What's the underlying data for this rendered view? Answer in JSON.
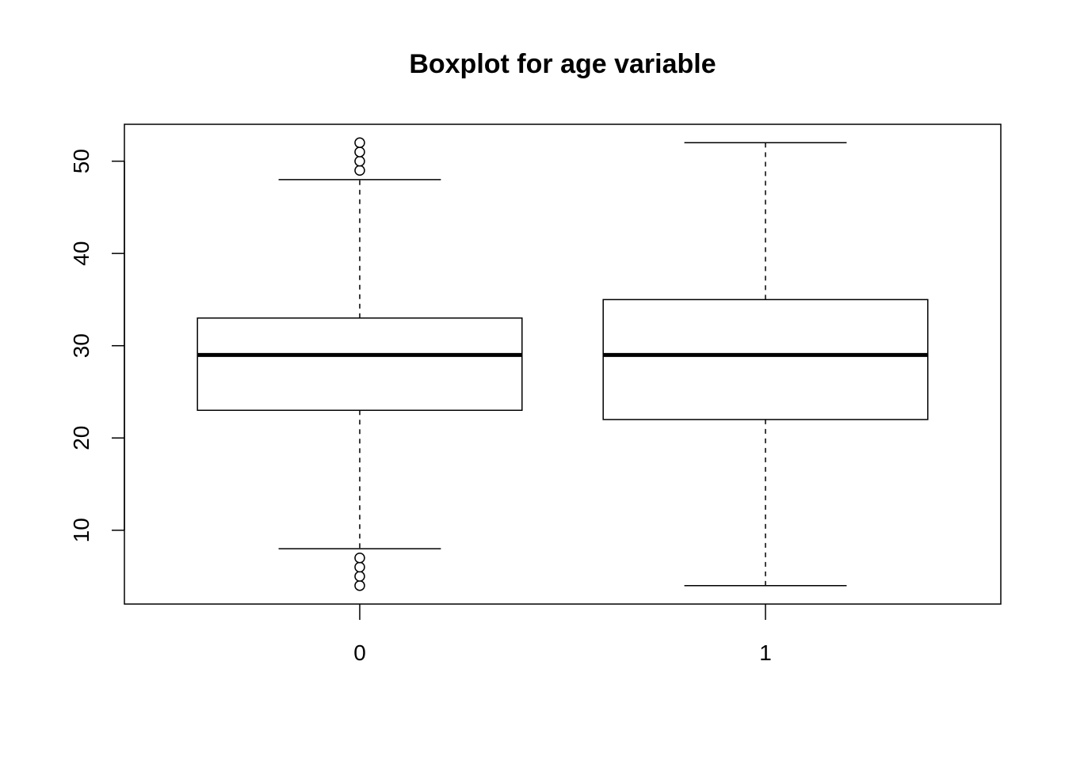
{
  "chart_data": {
    "type": "boxplot",
    "title": "Boxplot for age variable",
    "xlabel": "",
    "ylabel": "",
    "categories": [
      "0",
      "1"
    ],
    "y_ticks": [
      10,
      20,
      30,
      40,
      50
    ],
    "ylim": [
      2,
      54
    ],
    "grid": false,
    "boxes": [
      {
        "category": "0",
        "whisker_low": 8,
        "q1": 23,
        "median": 29,
        "q3": 33,
        "whisker_high": 48,
        "outliers": [
          4,
          5,
          6,
          7,
          49,
          50,
          51,
          52
        ]
      },
      {
        "category": "1",
        "whisker_low": 4,
        "q1": 22,
        "median": 29,
        "q3": 35,
        "whisker_high": 52,
        "outliers": []
      }
    ]
  }
}
